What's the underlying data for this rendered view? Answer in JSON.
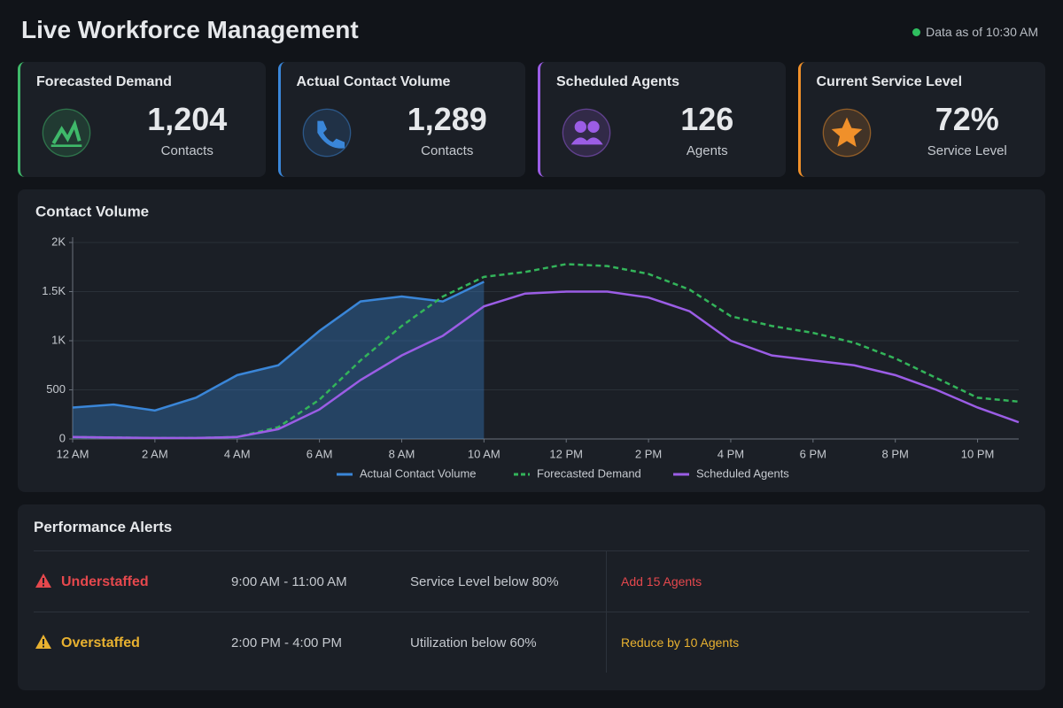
{
  "header": {
    "title": "Live Workforce Management",
    "status": "Data as of 10:30 AM"
  },
  "kpis": [
    {
      "label": "Forecasted Demand",
      "value": "1,204",
      "unit": "Contacts",
      "color": "#3fb96a"
    },
    {
      "label": "Actual Contact Volume",
      "value": "1,289",
      "unit": "Contacts",
      "color": "#3a86d8"
    },
    {
      "label": "Scheduled Agents",
      "value": "126",
      "unit": "Agents",
      "color": "#9b5de5"
    },
    {
      "label": "Current Service Level",
      "value": "72%",
      "unit": "Service Level",
      "color": "#f0902a"
    }
  ],
  "chart_data": {
    "type": "line",
    "title": "Contact Volume",
    "x": [
      0,
      1,
      2,
      3,
      4,
      5,
      6,
      7,
      8,
      9,
      10,
      11,
      12,
      13,
      14,
      15,
      16,
      17,
      18,
      19,
      20,
      21,
      22,
      23
    ],
    "xlim": [
      0,
      23
    ],
    "xticks": [
      {
        "value": 0,
        "label": "12 AM"
      },
      {
        "value": 2,
        "label": "2 AM"
      },
      {
        "value": 4,
        "label": "4 AM"
      },
      {
        "value": 6,
        "label": "6 AM"
      },
      {
        "value": 8,
        "label": "8 AM"
      },
      {
        "value": 10,
        "label": "10 AM"
      },
      {
        "value": 12,
        "label": "12 PM"
      },
      {
        "value": 14,
        "label": "2 PM"
      },
      {
        "value": 16,
        "label": "4 PM"
      },
      {
        "value": 18,
        "label": "6 PM"
      },
      {
        "value": 20,
        "label": "8 PM"
      },
      {
        "value": 22,
        "label": "10 PM"
      }
    ],
    "ylim": [
      0,
      2000
    ],
    "yticks": [
      0,
      500,
      {
        "value": 1000,
        "label": "1K"
      },
      {
        "value": 1500,
        "label": "1.5K"
      },
      {
        "value": 2000,
        "label": "2K"
      }
    ],
    "grid": true,
    "series": [
      {
        "name": "Actual Contact Volume",
        "color": "#3a86d8",
        "dash": false,
        "fill": true,
        "values": [
          320,
          350,
          290,
          420,
          650,
          750,
          1100,
          1400,
          1450,
          1400,
          1600,
          null,
          null,
          null,
          null,
          null,
          null,
          null,
          null,
          null,
          null,
          null,
          null,
          null
        ]
      },
      {
        "name": "Forecasted Demand",
        "color": "#33b45a",
        "dash": true,
        "fill": false,
        "values": [
          20,
          15,
          10,
          10,
          20,
          120,
          400,
          800,
          1150,
          1450,
          1650,
          1700,
          1780,
          1760,
          1680,
          1520,
          1250,
          1150,
          1080,
          980,
          820,
          620,
          420,
          380
        ]
      },
      {
        "name": "Scheduled Agents",
        "color": "#9b5de5",
        "dash": false,
        "fill": false,
        "values": [
          20,
          15,
          10,
          10,
          20,
          100,
          300,
          600,
          850,
          1050,
          1350,
          1480,
          1500,
          1500,
          1440,
          1300,
          1000,
          850,
          800,
          750,
          650,
          500,
          320,
          170
        ]
      }
    ]
  },
  "alerts": {
    "title": "Performance Alerts",
    "rows": [
      {
        "type": "Understaffed",
        "time": "9:00 AM - 11:00 AM",
        "reason": "Service Level below 80%",
        "action": "Add 15 Agents",
        "color": "#e5484d"
      },
      {
        "type": "Overstaffed",
        "time": "2:00 PM - 4:00 PM",
        "reason": "Utilization below 60%",
        "action": "Reduce by 10 Agents",
        "color": "#e8b130"
      }
    ]
  }
}
